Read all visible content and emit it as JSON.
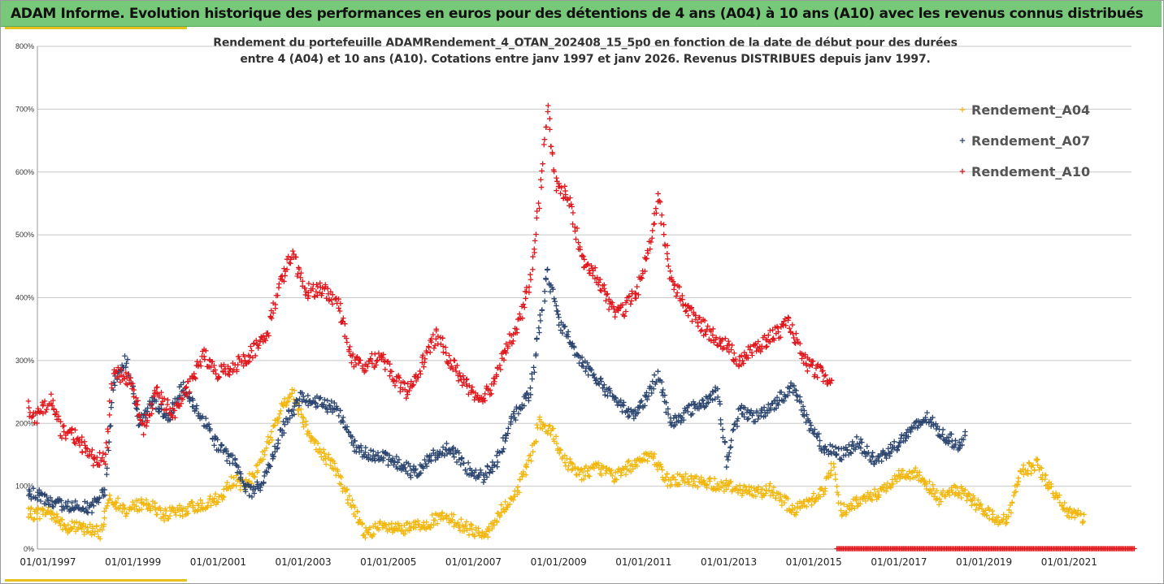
{
  "banner": {
    "title": "ADAM Informe. Evolution historique des performances en euros pour des détentions de 4 ans (A04) à 10 ans (A10) avec les revenus connus distribués"
  },
  "colors": {
    "banner_bg": "#77c878",
    "accent": "#e8c21c",
    "a04": "#f2b70f",
    "a07": "#2c4670",
    "a10": "#e0171c",
    "grid": "#c8c8c8"
  },
  "chart_data": {
    "type": "scatter",
    "title_line1": "Rendement du portefeuille ADAMRendement_4_OTAN_202408_15_5p0  en fonction de la date de début pour des durées",
    "title_line2": "entre 4 (A04) et 10 ans (A10). Cotations entre janv 1997 et janv 2026. Revenus DISTRIBUES depuis janv 1997.",
    "xlabel": "",
    "ylabel": "",
    "x_unit": "year",
    "xlim": [
      1997.0,
      2023.0
    ],
    "ylim": [
      0,
      800
    ],
    "y_ticks": [
      "0%",
      "100%",
      "200%",
      "300%",
      "400%",
      "500%",
      "600%",
      "700%",
      "800%"
    ],
    "x_tick_labels": [
      "01/01/1997",
      "01/01/1999",
      "01/01/2001",
      "01/01/2003",
      "01/01/2005",
      "01/01/2007",
      "01/01/2009",
      "01/01/2011",
      "01/01/2013",
      "01/01/2015",
      "01/01/2017",
      "01/01/2019",
      "01/01/2021"
    ],
    "x_tick_positions": [
      1997,
      1999,
      2001,
      2003,
      2005,
      2007,
      2009,
      2011,
      2013,
      2015,
      2017,
      2019,
      2021
    ],
    "grid": "horizontal",
    "legend_position": "top-right",
    "marker": "+",
    "series": [
      {
        "name": "Rendement_A04",
        "keypoints": [
          [
            1997.0,
            55
          ],
          [
            1997.5,
            60
          ],
          [
            1997.9,
            35
          ],
          [
            1998.4,
            32
          ],
          [
            1998.7,
            25
          ],
          [
            1998.9,
            85
          ],
          [
            1999.3,
            60
          ],
          [
            1999.7,
            75
          ],
          [
            2000.2,
            55
          ],
          [
            2000.6,
            60
          ],
          [
            2001.0,
            70
          ],
          [
            2001.5,
            80
          ],
          [
            2001.8,
            110
          ],
          [
            2002.1,
            100
          ],
          [
            2002.4,
            130
          ],
          [
            2002.7,
            180
          ],
          [
            2003.0,
            230
          ],
          [
            2003.2,
            250
          ],
          [
            2003.5,
            200
          ],
          [
            2003.8,
            160
          ],
          [
            2004.2,
            130
          ],
          [
            2004.6,
            70
          ],
          [
            2004.9,
            25
          ],
          [
            2005.3,
            35
          ],
          [
            2005.8,
            30
          ],
          [
            2006.3,
            40
          ],
          [
            2006.7,
            50
          ],
          [
            2007.0,
            45
          ],
          [
            2007.4,
            30
          ],
          [
            2007.8,
            25
          ],
          [
            2008.1,
            60
          ],
          [
            2008.5,
            90
          ],
          [
            2008.8,
            150
          ],
          [
            2009.0,
            200
          ],
          [
            2009.3,
            185
          ],
          [
            2009.6,
            140
          ],
          [
            2010.0,
            120
          ],
          [
            2010.4,
            130
          ],
          [
            2010.8,
            115
          ],
          [
            2011.3,
            140
          ],
          [
            2011.7,
            145
          ],
          [
            2012.0,
            110
          ],
          [
            2012.5,
            110
          ],
          [
            2013.0,
            105
          ],
          [
            2013.5,
            100
          ],
          [
            2014.0,
            90
          ],
          [
            2014.5,
            95
          ],
          [
            2015.0,
            60
          ],
          [
            2015.4,
            80
          ],
          [
            2015.7,
            95
          ],
          [
            2015.9,
            135
          ],
          [
            2016.1,
            60
          ],
          [
            2016.6,
            80
          ],
          [
            2017.0,
            90
          ],
          [
            2017.5,
            120
          ],
          [
            2017.9,
            120
          ],
          [
            2018.4,
            80
          ],
          [
            2018.8,
            95
          ],
          [
            2019.2,
            75
          ],
          [
            2019.7,
            50
          ],
          [
            2020.0,
            45
          ],
          [
            2020.3,
            120
          ],
          [
            2020.7,
            135
          ],
          [
            2021.0,
            100
          ],
          [
            2021.4,
            60
          ],
          [
            2021.8,
            50
          ]
        ],
        "spread": 10
      },
      {
        "name": "Rendement_A07",
        "keypoints": [
          [
            1997.0,
            90
          ],
          [
            1997.3,
            85
          ],
          [
            1997.6,
            70
          ],
          [
            1998.0,
            70
          ],
          [
            1998.5,
            65
          ],
          [
            1998.8,
            95
          ],
          [
            1999.0,
            260
          ],
          [
            1999.3,
            300
          ],
          [
            1999.6,
            200
          ],
          [
            1999.9,
            235
          ],
          [
            2000.3,
            210
          ],
          [
            2000.6,
            260
          ],
          [
            2001.0,
            220
          ],
          [
            2001.4,
            170
          ],
          [
            2001.8,
            140
          ],
          [
            2002.2,
            90
          ],
          [
            2002.5,
            105
          ],
          [
            2002.8,
            160
          ],
          [
            2003.1,
            210
          ],
          [
            2003.4,
            240
          ],
          [
            2003.8,
            235
          ],
          [
            2004.3,
            220
          ],
          [
            2004.7,
            160
          ],
          [
            2005.1,
            150
          ],
          [
            2005.6,
            140
          ],
          [
            2006.1,
            120
          ],
          [
            2006.5,
            150
          ],
          [
            2006.9,
            160
          ],
          [
            2007.3,
            130
          ],
          [
            2007.7,
            115
          ],
          [
            2008.0,
            140
          ],
          [
            2008.4,
            210
          ],
          [
            2008.8,
            250
          ],
          [
            2009.0,
            350
          ],
          [
            2009.2,
            440
          ],
          [
            2009.5,
            360
          ],
          [
            2009.9,
            310
          ],
          [
            2010.3,
            270
          ],
          [
            2010.8,
            240
          ],
          [
            2011.2,
            210
          ],
          [
            2011.6,
            250
          ],
          [
            2011.8,
            280
          ],
          [
            2012.1,
            200
          ],
          [
            2012.5,
            220
          ],
          [
            2012.9,
            235
          ],
          [
            2013.2,
            250
          ],
          [
            2013.4,
            140
          ],
          [
            2013.7,
            220
          ],
          [
            2014.1,
            210
          ],
          [
            2014.5,
            230
          ],
          [
            2015.0,
            260
          ],
          [
            2015.3,
            200
          ],
          [
            2015.7,
            160
          ],
          [
            2016.1,
            150
          ],
          [
            2016.5,
            170
          ],
          [
            2016.9,
            140
          ],
          [
            2017.3,
            160
          ],
          [
            2017.7,
            185
          ],
          [
            2018.1,
            210
          ],
          [
            2018.5,
            180
          ],
          [
            2018.9,
            165
          ],
          [
            2019.0,
            180
          ]
        ],
        "spread": 10
      },
      {
        "name": "Rendement_A10",
        "keypoints": [
          [
            1997.0,
            225
          ],
          [
            1997.2,
            210
          ],
          [
            1997.5,
            240
          ],
          [
            1997.8,
            185
          ],
          [
            1998.1,
            180
          ],
          [
            1998.5,
            145
          ],
          [
            1998.8,
            140
          ],
          [
            1999.0,
            280
          ],
          [
            1999.4,
            270
          ],
          [
            1999.7,
            190
          ],
          [
            2000.0,
            250
          ],
          [
            2000.4,
            215
          ],
          [
            2000.8,
            260
          ],
          [
            2001.1,
            310
          ],
          [
            2001.4,
            280
          ],
          [
            2001.8,
            290
          ],
          [
            2002.2,
            310
          ],
          [
            2002.6,
            340
          ],
          [
            2002.9,
            420
          ],
          [
            2003.2,
            470
          ],
          [
            2003.5,
            410
          ],
          [
            2003.9,
            415
          ],
          [
            2004.3,
            390
          ],
          [
            2004.6,
            300
          ],
          [
            2004.9,
            290
          ],
          [
            2005.3,
            310
          ],
          [
            2005.6,
            270
          ],
          [
            2005.9,
            250
          ],
          [
            2006.2,
            290
          ],
          [
            2006.6,
            340
          ],
          [
            2006.9,
            300
          ],
          [
            2007.2,
            270
          ],
          [
            2007.6,
            240
          ],
          [
            2007.9,
            260
          ],
          [
            2008.2,
            320
          ],
          [
            2008.5,
            350
          ],
          [
            2008.8,
            430
          ],
          [
            2009.0,
            550
          ],
          [
            2009.2,
            700
          ],
          [
            2009.4,
            580
          ],
          [
            2009.7,
            560
          ],
          [
            2010.0,
            460
          ],
          [
            2010.4,
            430
          ],
          [
            2010.7,
            380
          ],
          [
            2011.0,
            380
          ],
          [
            2011.3,
            410
          ],
          [
            2011.6,
            480
          ],
          [
            2011.8,
            560
          ],
          [
            2012.1,
            430
          ],
          [
            2012.5,
            380
          ],
          [
            2012.9,
            350
          ],
          [
            2013.3,
            330
          ],
          [
            2013.7,
            300
          ],
          [
            2014.1,
            320
          ],
          [
            2014.5,
            340
          ],
          [
            2014.9,
            360
          ],
          [
            2015.2,
            300
          ],
          [
            2015.6,
            280
          ],
          [
            2015.9,
            260
          ]
        ],
        "spread": 12
      }
    ],
    "zero_band": {
      "series": "Rendement_A10",
      "x_range": [
        2016.0,
        2023.0
      ],
      "value": 0
    }
  }
}
